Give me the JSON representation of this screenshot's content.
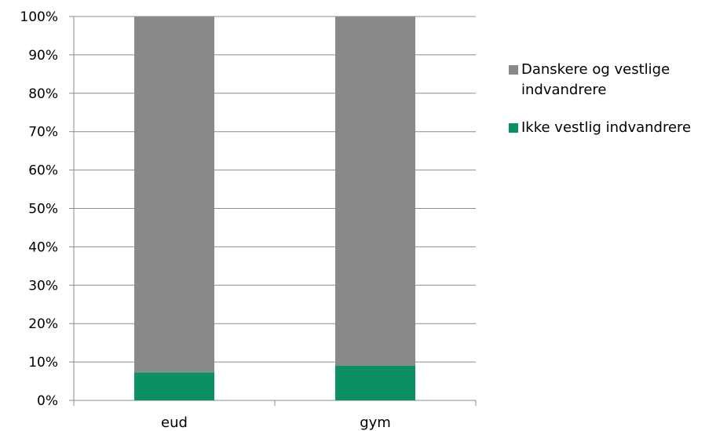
{
  "chart_data": {
    "type": "bar",
    "stacked": true,
    "percent_stacked": true,
    "categories": [
      "eud",
      "gym"
    ],
    "series": [
      {
        "name": "Ikke vestlig indvandrere",
        "values": [
          7.3,
          9.0
        ],
        "color": "#0b8f63"
      },
      {
        "name": "Danskere og vestlige indvandrere",
        "values": [
          92.7,
          91.0
        ],
        "color": "#87898b"
      }
    ],
    "y_ticks": [
      "0%",
      "10%",
      "20%",
      "30%",
      "40%",
      "50%",
      "60%",
      "70%",
      "80%",
      "90%",
      "100%"
    ],
    "ylim": [
      0,
      100
    ],
    "grid": true,
    "legend_position": "right",
    "legend": [
      {
        "label_line1": "Danskere og vestlige",
        "label_line2": "indvandrere",
        "color": "#87898b"
      },
      {
        "label_line1": "Ikke vestlig indvandrere",
        "color": "#0b8f63"
      }
    ]
  }
}
